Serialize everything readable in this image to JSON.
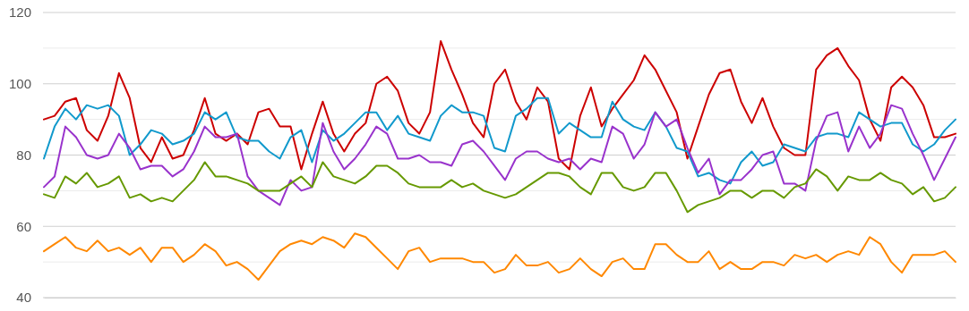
{
  "chart_data": {
    "type": "line",
    "ylim": [
      40,
      120
    ],
    "categories": [
      null,
      null,
      null,
      null,
      null,
      null,
      null,
      null,
      null,
      null,
      null,
      null,
      null,
      null,
      null,
      null,
      null,
      null,
      null,
      null,
      null,
      null,
      null,
      null,
      null,
      null,
      null,
      null,
      null,
      null,
      null,
      null,
      null,
      null,
      null,
      null,
      null,
      null,
      null,
      null,
      null,
      null,
      null,
      null,
      null,
      null,
      null,
      null,
      null,
      null,
      null,
      null,
      null,
      null,
      null,
      null,
      null,
      null,
      null,
      null,
      null,
      null,
      null,
      null,
      null,
      null,
      null,
      null,
      null,
      null,
      null,
      null,
      null,
      null,
      null,
      null,
      null,
      null,
      null,
      null,
      null,
      null,
      null,
      null,
      null,
      null
    ],
    "yticks": [
      40,
      {
        "value": 50,
        "label": null
      },
      60,
      {
        "value": 70,
        "label": null
      },
      80,
      {
        "value": 90,
        "label": null
      },
      100,
      {
        "value": 110,
        "label": null
      },
      120
    ],
    "tick_labels": "y",
    "grid": "y",
    "series": [
      {
        "color": "#cc0000",
        "values": [
          90,
          91,
          95,
          96,
          87,
          84,
          91,
          103,
          96,
          82,
          78,
          85,
          79,
          80,
          87,
          96,
          86,
          84,
          86,
          83,
          92,
          93,
          88,
          88,
          76,
          86,
          95,
          86,
          81,
          86,
          89,
          100,
          102,
          98,
          89,
          86,
          92,
          112,
          104,
          97,
          89,
          85,
          100,
          104,
          95,
          90,
          99,
          95,
          79,
          76,
          91,
          99,
          88,
          93,
          97,
          101,
          108,
          104,
          98,
          92,
          79,
          88,
          97,
          103,
          104,
          95,
          89,
          96,
          88,
          82,
          80,
          80,
          104,
          108,
          110,
          105,
          101,
          90,
          84,
          99,
          102,
          99,
          94,
          85,
          85,
          86
        ]
      },
      {
        "color": "#1199cc",
        "values": [
          79,
          88,
          93,
          90,
          94,
          93,
          94,
          91,
          80,
          83,
          87,
          86,
          83,
          84,
          86,
          92,
          90,
          92,
          85,
          84,
          84,
          81,
          79,
          85,
          87,
          78,
          87,
          84,
          86,
          89,
          92,
          92,
          87,
          91,
          86,
          85,
          84,
          91,
          94,
          92,
          92,
          91,
          82,
          81,
          91,
          93,
          96,
          96,
          86,
          89,
          87,
          85,
          85,
          95,
          90,
          88,
          87,
          92,
          88,
          82,
          81,
          74,
          75,
          73,
          72,
          78,
          81,
          77,
          78,
          83,
          82,
          81,
          85,
          86,
          86,
          85,
          92,
          90,
          88,
          89,
          89,
          83,
          81,
          83,
          87,
          90
        ]
      },
      {
        "color": "#9933cc",
        "values": [
          71,
          74,
          88,
          85,
          80,
          79,
          80,
          86,
          82,
          76,
          77,
          77,
          74,
          76,
          81,
          88,
          85,
          85,
          86,
          74,
          70,
          68,
          66,
          73,
          70,
          71,
          89,
          81,
          76,
          79,
          83,
          88,
          86,
          79,
          79,
          80,
          78,
          78,
          77,
          83,
          84,
          81,
          77,
          73,
          79,
          81,
          81,
          79,
          78,
          79,
          76,
          79,
          78,
          88,
          86,
          79,
          83,
          92,
          88,
          90,
          82,
          75,
          79,
          69,
          73,
          73,
          76,
          80,
          81,
          72,
          72,
          70,
          84,
          91,
          92,
          81,
          88,
          82,
          86,
          94,
          93,
          86,
          80,
          73,
          79,
          85
        ]
      },
      {
        "color": "#669900",
        "values": [
          69,
          68,
          74,
          72,
          75,
          71,
          72,
          74,
          68,
          69,
          67,
          68,
          67,
          70,
          73,
          78,
          74,
          74,
          73,
          72,
          70,
          70,
          70,
          72,
          74,
          71,
          78,
          74,
          73,
          72,
          74,
          77,
          77,
          75,
          72,
          71,
          71,
          71,
          73,
          71,
          72,
          70,
          69,
          68,
          69,
          71,
          73,
          75,
          75,
          74,
          71,
          69,
          75,
          75,
          71,
          70,
          71,
          75,
          75,
          70,
          64,
          66,
          67,
          68,
          70,
          70,
          68,
          70,
          70,
          68,
          71,
          72,
          76,
          74,
          70,
          74,
          73,
          73,
          75,
          73,
          72,
          69,
          71,
          67,
          68,
          71
        ]
      },
      {
        "color": "#ff8800",
        "values": [
          53,
          55,
          57,
          54,
          53,
          56,
          53,
          54,
          52,
          54,
          50,
          54,
          54,
          50,
          52,
          55,
          53,
          49,
          50,
          48,
          45,
          49,
          53,
          55,
          56,
          55,
          57,
          56,
          54,
          58,
          57,
          54,
          51,
          48,
          53,
          54,
          50,
          51,
          51,
          51,
          50,
          50,
          47,
          48,
          52,
          49,
          49,
          50,
          47,
          48,
          51,
          48,
          46,
          50,
          51,
          48,
          48,
          55,
          55,
          52,
          50,
          50,
          53,
          48,
          50,
          48,
          48,
          50,
          50,
          49,
          52,
          51,
          52,
          50,
          52,
          53,
          52,
          57,
          55,
          50,
          47,
          52,
          52,
          52,
          53,
          50
        ]
      }
    ]
  }
}
